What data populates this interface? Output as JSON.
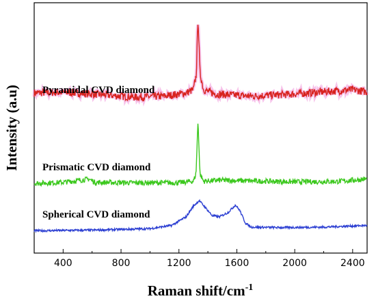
{
  "chart_data": {
    "type": "line",
    "xlabel": "Raman shift/cm",
    "xlabel_superscript": "-1",
    "ylabel": "Intensity (a.u)",
    "xlim": [
      200,
      2500
    ],
    "x_ticks": [
      400,
      800,
      1200,
      1600,
      2000,
      2400
    ],
    "y_ticks_labeled": false,
    "grid": false,
    "series": [
      {
        "name": "Pyramidal CVD diamond",
        "color": "#d8231f",
        "halo_color": "#f08ad8",
        "baseline": 0.64,
        "noise": 0.018,
        "points": [
          [
            200,
            0.645
          ],
          [
            400,
            0.648
          ],
          [
            600,
            0.64
          ],
          [
            900,
            0.625
          ],
          [
            1100,
            0.63
          ],
          [
            1250,
            0.645
          ],
          [
            1300,
            0.66
          ],
          [
            1320,
            0.73
          ],
          [
            1332,
            1.0
          ],
          [
            1345,
            0.74
          ],
          [
            1370,
            0.66
          ],
          [
            1450,
            0.64
          ],
          [
            1700,
            0.63
          ],
          [
            2000,
            0.64
          ],
          [
            2300,
            0.655
          ],
          [
            2400,
            0.66
          ],
          [
            2500,
            0.65
          ]
        ]
      },
      {
        "name": "Prismatic CVD diamond",
        "color": "#3cc81e",
        "baseline": 0.23,
        "noise": 0.012,
        "points": [
          [
            200,
            0.225
          ],
          [
            400,
            0.23
          ],
          [
            580,
            0.245
          ],
          [
            620,
            0.23
          ],
          [
            900,
            0.228
          ],
          [
            1200,
            0.228
          ],
          [
            1300,
            0.235
          ],
          [
            1318,
            0.27
          ],
          [
            1332,
            0.52
          ],
          [
            1345,
            0.27
          ],
          [
            1370,
            0.235
          ],
          [
            1500,
            0.24
          ],
          [
            1600,
            0.238
          ],
          [
            2000,
            0.232
          ],
          [
            2300,
            0.234
          ],
          [
            2500,
            0.245
          ]
        ]
      },
      {
        "name": "Spherical CVD diamond",
        "color": "#2c3fd2",
        "baseline": 0.01,
        "noise": 0.005,
        "points": [
          [
            200,
            0.005
          ],
          [
            600,
            0.008
          ],
          [
            1000,
            0.015
          ],
          [
            1150,
            0.03
          ],
          [
            1250,
            0.07
          ],
          [
            1300,
            0.12
          ],
          [
            1340,
            0.145
          ],
          [
            1380,
            0.115
          ],
          [
            1430,
            0.075
          ],
          [
            1480,
            0.07
          ],
          [
            1540,
            0.09
          ],
          [
            1590,
            0.125
          ],
          [
            1620,
            0.1
          ],
          [
            1660,
            0.04
          ],
          [
            1700,
            0.022
          ],
          [
            1900,
            0.02
          ],
          [
            2200,
            0.022
          ],
          [
            2500,
            0.03
          ]
        ]
      }
    ]
  }
}
